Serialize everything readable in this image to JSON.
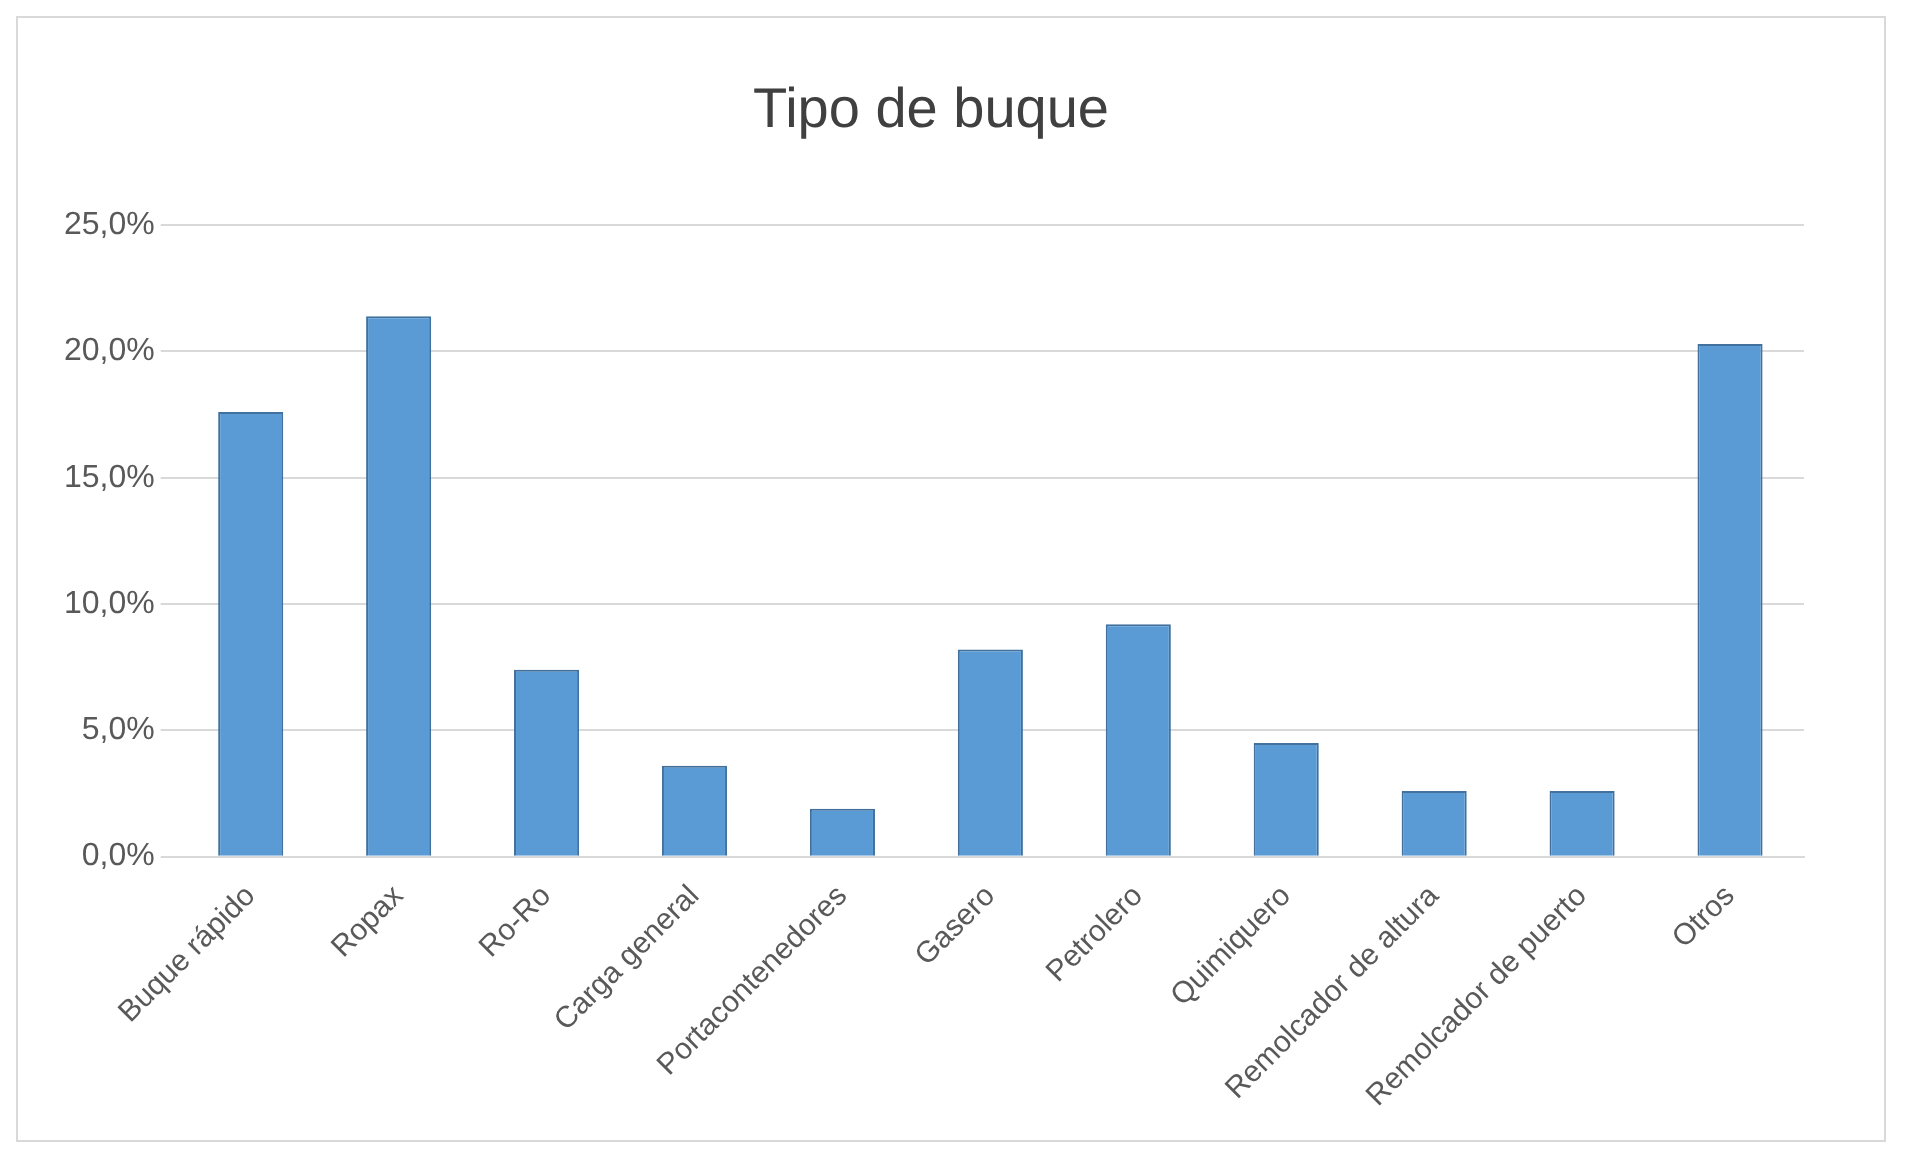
{
  "chart_data": {
    "type": "bar",
    "title": "Tipo de buque",
    "categories": [
      "Buque rápido",
      "Ropax",
      "Ro-Ro",
      "Carga general",
      "Portacontenedores",
      "Gasero",
      "Petrolero",
      "Quimiquero",
      "Remolcador de altura",
      "Remolcador de puerto",
      "Otros"
    ],
    "values": [
      17.6,
      21.4,
      7.4,
      3.6,
      1.9,
      8.2,
      9.2,
      4.5,
      2.6,
      2.6,
      20.3
    ],
    "color": "#5b9bd5",
    "ylim": [
      0,
      25
    ],
    "yticks": [
      {
        "value": 0,
        "label": "0,0%"
      },
      {
        "value": 5,
        "label": "5,0%"
      },
      {
        "value": 10,
        "label": "10,0%"
      },
      {
        "value": 15,
        "label": "15,0%"
      },
      {
        "value": 20,
        "label": "20,0%"
      },
      {
        "value": 25,
        "label": "25,0%"
      }
    ],
    "grid": "y",
    "legend": false
  }
}
